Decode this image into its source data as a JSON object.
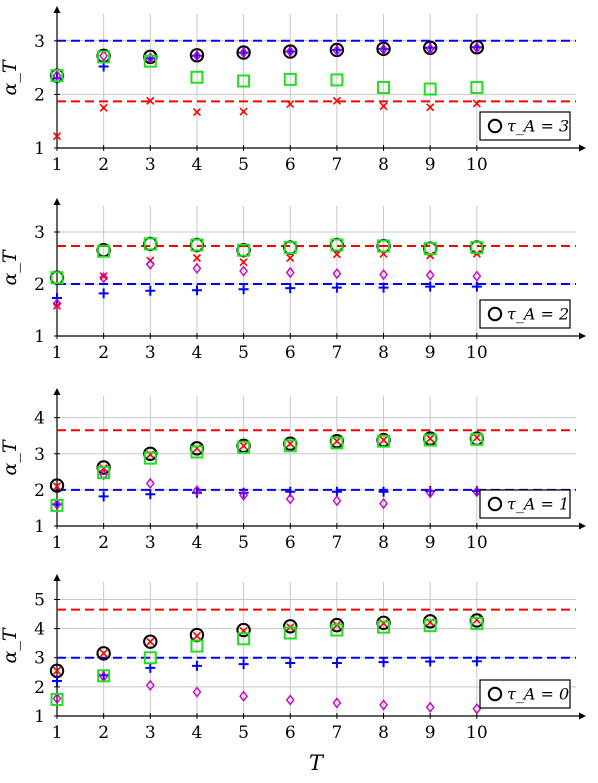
{
  "chart_data": [
    {
      "type": "scatter",
      "ylabel": "α_T",
      "xlabel": "",
      "x": [
        1,
        2,
        3,
        4,
        5,
        6,
        7,
        8,
        9,
        10
      ],
      "xlim": [
        1,
        10.5
      ],
      "ylim": [
        1,
        3.5
      ],
      "yticks": [
        1,
        2,
        3
      ],
      "legend": "τ_A = 3",
      "hlines": [
        {
          "y": 3.0,
          "color": "#0000ff"
        },
        {
          "y": 1.87,
          "color": "#ff0000"
        }
      ],
      "series": [
        {
          "marker": "circle",
          "color": "#000000",
          "values": [
            2.35,
            2.72,
            2.7,
            2.73,
            2.78,
            2.8,
            2.83,
            2.85,
            2.87,
            2.88
          ]
        },
        {
          "marker": "plus",
          "color": "#0000ff",
          "values": [
            2.3,
            2.52,
            2.67,
            2.72,
            2.78,
            2.8,
            2.83,
            2.85,
            2.87,
            2.88
          ]
        },
        {
          "marker": "cross",
          "color": "#ff0000",
          "values": [
            1.22,
            1.75,
            1.88,
            1.67,
            1.68,
            1.82,
            1.88,
            1.78,
            1.76,
            1.83
          ]
        },
        {
          "marker": "diamond",
          "color": "#cc00cc",
          "values": [
            2.35,
            2.72,
            2.68,
            2.72,
            2.78,
            2.8,
            2.82,
            2.84,
            2.85,
            2.87
          ]
        },
        {
          "marker": "square",
          "color": "#22dd22",
          "values": [
            2.35,
            2.7,
            2.62,
            2.32,
            2.25,
            2.28,
            2.27,
            2.13,
            2.1,
            2.13
          ]
        }
      ]
    },
    {
      "type": "scatter",
      "ylabel": "α_T",
      "xlabel": "",
      "x": [
        1,
        2,
        3,
        4,
        5,
        6,
        7,
        8,
        9,
        10
      ],
      "xlim": [
        1,
        10.5
      ],
      "ylim": [
        1,
        3.5
      ],
      "yticks": [
        1,
        2,
        3
      ],
      "legend": "τ_A = 2",
      "hlines": [
        {
          "y": 2.73,
          "color": "#ff0000"
        },
        {
          "y": 2.0,
          "color": "#0000ff"
        }
      ],
      "series": [
        {
          "marker": "circle",
          "color": "#000000",
          "values": [
            2.12,
            2.65,
            2.77,
            2.75,
            2.65,
            2.7,
            2.75,
            2.73,
            2.68,
            2.7
          ]
        },
        {
          "marker": "plus",
          "color": "#0000ff",
          "values": [
            1.73,
            1.82,
            1.87,
            1.88,
            1.9,
            1.92,
            1.93,
            1.93,
            1.95,
            1.95
          ]
        },
        {
          "marker": "cross",
          "color": "#ff0000",
          "values": [
            1.58,
            2.15,
            2.45,
            2.5,
            2.42,
            2.5,
            2.57,
            2.58,
            2.55,
            2.58
          ]
        },
        {
          "marker": "diamond",
          "color": "#cc00cc",
          "values": [
            1.62,
            2.12,
            2.38,
            2.3,
            2.25,
            2.22,
            2.2,
            2.18,
            2.17,
            2.15
          ]
        },
        {
          "marker": "square",
          "color": "#22dd22",
          "values": [
            2.12,
            2.63,
            2.77,
            2.75,
            2.65,
            2.7,
            2.75,
            2.73,
            2.68,
            2.7
          ]
        }
      ]
    },
    {
      "type": "scatter",
      "ylabel": "α_T",
      "xlabel": "",
      "x": [
        1,
        2,
        3,
        4,
        5,
        6,
        7,
        8,
        9,
        10
      ],
      "xlim": [
        1,
        10.5
      ],
      "ylim": [
        1,
        4.6
      ],
      "yticks": [
        1,
        2,
        3,
        4
      ],
      "legend": "τ_A = 1",
      "hlines": [
        {
          "y": 3.65,
          "color": "#ff0000"
        },
        {
          "y": 2.0,
          "color": "#0000ff"
        }
      ],
      "series": [
        {
          "marker": "circle",
          "color": "#000000",
          "values": [
            2.12,
            2.62,
            3.0,
            3.15,
            3.22,
            3.28,
            3.35,
            3.38,
            3.42,
            3.42
          ]
        },
        {
          "marker": "plus",
          "color": "#0000ff",
          "values": [
            1.6,
            1.82,
            1.88,
            1.92,
            1.92,
            1.95,
            1.95,
            1.95,
            1.97,
            1.97
          ]
        },
        {
          "marker": "cross",
          "color": "#ff0000",
          "values": [
            2.1,
            2.6,
            2.98,
            3.15,
            3.22,
            3.28,
            3.35,
            3.38,
            3.42,
            3.45
          ]
        },
        {
          "marker": "diamond",
          "color": "#cc00cc",
          "values": [
            1.6,
            2.42,
            2.18,
            1.98,
            1.85,
            1.75,
            1.7,
            1.62,
            1.92,
            1.95
          ]
        },
        {
          "marker": "square",
          "color": "#22dd22",
          "values": [
            1.57,
            2.48,
            2.88,
            3.05,
            3.18,
            3.22,
            3.3,
            3.35,
            3.38,
            3.4
          ]
        }
      ]
    },
    {
      "type": "scatter",
      "ylabel": "α_T",
      "xlabel": "T",
      "x": [
        1,
        2,
        3,
        4,
        5,
        6,
        7,
        8,
        9,
        10
      ],
      "xlim": [
        1,
        10.5
      ],
      "ylim": [
        1,
        5.6
      ],
      "yticks": [
        1,
        2,
        3,
        4,
        5
      ],
      "legend": "τ_A = 0",
      "hlines": [
        {
          "y": 4.65,
          "color": "#ff0000"
        },
        {
          "y": 3.0,
          "color": "#0000ff"
        }
      ],
      "series": [
        {
          "marker": "circle",
          "color": "#000000",
          "values": [
            2.55,
            3.15,
            3.55,
            3.78,
            3.95,
            4.08,
            4.12,
            4.2,
            4.25,
            4.28
          ]
        },
        {
          "marker": "plus",
          "color": "#0000ff",
          "values": [
            2.2,
            2.4,
            2.65,
            2.72,
            2.78,
            2.82,
            2.82,
            2.85,
            2.87,
            2.88
          ]
        },
        {
          "marker": "cross",
          "color": "#ff0000",
          "values": [
            2.55,
            3.15,
            3.55,
            3.75,
            3.92,
            4.05,
            4.12,
            4.18,
            4.22,
            4.3
          ]
        },
        {
          "marker": "diamond",
          "color": "#cc00cc",
          "values": [
            1.6,
            2.35,
            2.05,
            1.82,
            1.68,
            1.55,
            1.45,
            1.38,
            1.3,
            1.25
          ]
        },
        {
          "marker": "square",
          "color": "#22dd22",
          "values": [
            1.57,
            2.38,
            3.0,
            3.4,
            3.65,
            3.85,
            3.95,
            4.05,
            4.1,
            4.18
          ]
        }
      ]
    }
  ]
}
